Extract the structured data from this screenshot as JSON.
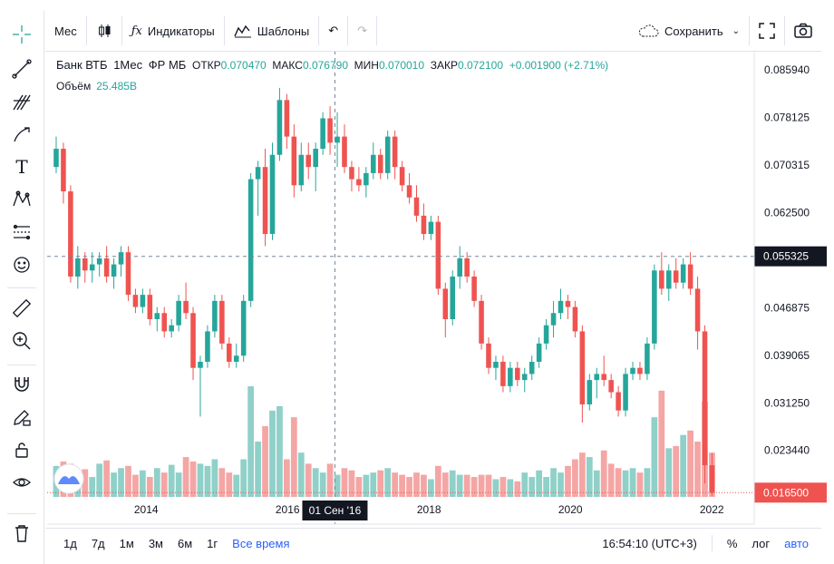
{
  "toolbar": {
    "interval": "Мес",
    "indicators": "Индикаторы",
    "templates": "Шаблоны",
    "save": "Сохранить"
  },
  "legend": {
    "symbol": "Банк ВТБ",
    "interval": "1Мес",
    "exchange": "ФР МБ",
    "open_label": "ОТКР",
    "open": "0.070470",
    "high_label": "МАКС",
    "high": "0.076790",
    "low_label": "МИН",
    "low": "0.070010",
    "close_label": "ЗАКР",
    "close": "0.072100",
    "change": "+0.001900 (+2.71%)",
    "volume_label": "Объём",
    "volume": "25.485B"
  },
  "bottom": {
    "ranges": [
      "1д",
      "7д",
      "1м",
      "3м",
      "6м",
      "1г",
      "Все время"
    ],
    "time": "16:54:10 (UTC+3)",
    "percent": "%",
    "log": "лог",
    "auto": "авто"
  },
  "colors": {
    "up": "#26a69a",
    "down": "#ef5350",
    "vol_up": "#8fd0c9",
    "vol_down": "#f4a6a4",
    "accent": "#2962ff"
  },
  "chart_data": {
    "type": "candlestick",
    "price_axis": [
      "0.085940",
      "0.078125",
      "0.070315",
      "0.062500",
      "0.046875",
      "0.039065",
      "0.031250",
      "0.023440"
    ],
    "price_range": [
      0.0158,
      0.0885
    ],
    "time_axis": [
      "2014",
      "2016",
      "2018",
      "2020",
      "2022"
    ],
    "time_range": [
      2012.6,
      2022.6
    ],
    "crosshair": {
      "time": "01 Сен '16",
      "t": 2016.67,
      "price": "0.055325",
      "p": 0.055325
    },
    "last_price": {
      "label": "0.016500",
      "value": 0.0165
    },
    "candles": [
      [
        0.07,
        0.075,
        0.069,
        0.073
      ],
      [
        0.073,
        0.074,
        0.064,
        0.066
      ],
      [
        0.066,
        0.067,
        0.051,
        0.052
      ],
      [
        0.052,
        0.057,
        0.05,
        0.055
      ],
      [
        0.055,
        0.056,
        0.051,
        0.053
      ],
      [
        0.053,
        0.056,
        0.051,
        0.054
      ],
      [
        0.054,
        0.056,
        0.052,
        0.055
      ],
      [
        0.055,
        0.057,
        0.051,
        0.052
      ],
      [
        0.052,
        0.055,
        0.05,
        0.054
      ],
      [
        0.054,
        0.057,
        0.052,
        0.056
      ],
      [
        0.056,
        0.057,
        0.048,
        0.049
      ],
      [
        0.049,
        0.05,
        0.046,
        0.047
      ],
      [
        0.047,
        0.05,
        0.046,
        0.049
      ],
      [
        0.049,
        0.05,
        0.044,
        0.045
      ],
      [
        0.045,
        0.047,
        0.043,
        0.046
      ],
      [
        0.046,
        0.047,
        0.042,
        0.043
      ],
      [
        0.043,
        0.045,
        0.042,
        0.044
      ],
      [
        0.044,
        0.049,
        0.043,
        0.048
      ],
      [
        0.048,
        0.051,
        0.045,
        0.046
      ],
      [
        0.046,
        0.047,
        0.035,
        0.037
      ],
      [
        0.037,
        0.039,
        0.029,
        0.038
      ],
      [
        0.038,
        0.044,
        0.037,
        0.043
      ],
      [
        0.043,
        0.049,
        0.042,
        0.048
      ],
      [
        0.048,
        0.049,
        0.04,
        0.041
      ],
      [
        0.041,
        0.042,
        0.037,
        0.038
      ],
      [
        0.038,
        0.041,
        0.037,
        0.039
      ],
      [
        0.039,
        0.049,
        0.038,
        0.048
      ],
      [
        0.048,
        0.069,
        0.047,
        0.068
      ],
      [
        0.068,
        0.071,
        0.062,
        0.07
      ],
      [
        0.07,
        0.073,
        0.057,
        0.059
      ],
      [
        0.059,
        0.074,
        0.058,
        0.072
      ],
      [
        0.072,
        0.083,
        0.071,
        0.081
      ],
      [
        0.081,
        0.082,
        0.073,
        0.075
      ],
      [
        0.075,
        0.077,
        0.065,
        0.067
      ],
      [
        0.067,
        0.074,
        0.066,
        0.072
      ],
      [
        0.072,
        0.074,
        0.068,
        0.07
      ],
      [
        0.07,
        0.074,
        0.066,
        0.073
      ],
      [
        0.073,
        0.079,
        0.072,
        0.078
      ],
      [
        0.078,
        0.08,
        0.072,
        0.074
      ],
      [
        0.074,
        0.079,
        0.07,
        0.075
      ],
      [
        0.075,
        0.077,
        0.069,
        0.07
      ],
      [
        0.07,
        0.071,
        0.066,
        0.068
      ],
      [
        0.068,
        0.07,
        0.066,
        0.067
      ],
      [
        0.067,
        0.07,
        0.065,
        0.069
      ],
      [
        0.069,
        0.074,
        0.068,
        0.072
      ],
      [
        0.072,
        0.073,
        0.068,
        0.069
      ],
      [
        0.069,
        0.076,
        0.068,
        0.075
      ],
      [
        0.075,
        0.076,
        0.068,
        0.07
      ],
      [
        0.07,
        0.071,
        0.066,
        0.067
      ],
      [
        0.067,
        0.069,
        0.064,
        0.065
      ],
      [
        0.065,
        0.067,
        0.061,
        0.062
      ],
      [
        0.062,
        0.064,
        0.058,
        0.059
      ],
      [
        0.059,
        0.062,
        0.058,
        0.061
      ],
      [
        0.061,
        0.062,
        0.049,
        0.05
      ],
      [
        0.05,
        0.051,
        0.042,
        0.045
      ],
      [
        0.045,
        0.053,
        0.044,
        0.052
      ],
      [
        0.052,
        0.057,
        0.05,
        0.055
      ],
      [
        0.055,
        0.056,
        0.051,
        0.052
      ],
      [
        0.052,
        0.053,
        0.047,
        0.048
      ],
      [
        0.048,
        0.049,
        0.04,
        0.041
      ],
      [
        0.041,
        0.042,
        0.036,
        0.037
      ],
      [
        0.037,
        0.039,
        0.035,
        0.038
      ],
      [
        0.038,
        0.039,
        0.033,
        0.034
      ],
      [
        0.034,
        0.038,
        0.033,
        0.037
      ],
      [
        0.037,
        0.038,
        0.034,
        0.035
      ],
      [
        0.035,
        0.037,
        0.033,
        0.036
      ],
      [
        0.036,
        0.039,
        0.035,
        0.038
      ],
      [
        0.038,
        0.042,
        0.037,
        0.041
      ],
      [
        0.041,
        0.045,
        0.04,
        0.044
      ],
      [
        0.044,
        0.048,
        0.042,
        0.046
      ],
      [
        0.046,
        0.05,
        0.045,
        0.048
      ],
      [
        0.048,
        0.049,
        0.045,
        0.047
      ],
      [
        0.047,
        0.048,
        0.042,
        0.043
      ],
      [
        0.043,
        0.044,
        0.028,
        0.031
      ],
      [
        0.031,
        0.036,
        0.03,
        0.035
      ],
      [
        0.035,
        0.037,
        0.032,
        0.036
      ],
      [
        0.036,
        0.039,
        0.034,
        0.035
      ],
      [
        0.035,
        0.036,
        0.032,
        0.033
      ],
      [
        0.033,
        0.034,
        0.029,
        0.03
      ],
      [
        0.03,
        0.037,
        0.029,
        0.036
      ],
      [
        0.036,
        0.038,
        0.035,
        0.037
      ],
      [
        0.037,
        0.038,
        0.035,
        0.036
      ],
      [
        0.036,
        0.042,
        0.035,
        0.041
      ],
      [
        0.041,
        0.054,
        0.04,
        0.053
      ],
      [
        0.053,
        0.056,
        0.049,
        0.05
      ],
      [
        0.05,
        0.054,
        0.048,
        0.053
      ],
      [
        0.053,
        0.055,
        0.05,
        0.051
      ],
      [
        0.051,
        0.055,
        0.05,
        0.054
      ],
      [
        0.054,
        0.056,
        0.049,
        0.05
      ],
      [
        0.05,
        0.052,
        0.04,
        0.043
      ],
      [
        0.043,
        0.044,
        0.018,
        0.021
      ],
      [
        0.021,
        0.023,
        0.016,
        0.0165
      ]
    ],
    "volume_levels": [
      0.28,
      0.32,
      0.3,
      0.22,
      0.25,
      0.18,
      0.3,
      0.33,
      0.22,
      0.26,
      0.28,
      0.2,
      0.24,
      0.18,
      0.26,
      0.22,
      0.29,
      0.22,
      0.36,
      0.32,
      0.3,
      0.28,
      0.34,
      0.26,
      0.22,
      0.2,
      0.34,
      1.0,
      0.5,
      0.64,
      0.78,
      0.82,
      0.34,
      0.72,
      0.4,
      0.3,
      0.26,
      0.22,
      0.3,
      0.2,
      0.26,
      0.24,
      0.18,
      0.2,
      0.22,
      0.24,
      0.26,
      0.22,
      0.2,
      0.18,
      0.22,
      0.2,
      0.16,
      0.28,
      0.22,
      0.24,
      0.2,
      0.2,
      0.18,
      0.2,
      0.2,
      0.16,
      0.18,
      0.16,
      0.14,
      0.22,
      0.18,
      0.24,
      0.18,
      0.26,
      0.22,
      0.28,
      0.34,
      0.4,
      0.36,
      0.24,
      0.42,
      0.3,
      0.26,
      0.24,
      0.26,
      0.22,
      0.26,
      0.72,
      0.96,
      0.44,
      0.46,
      0.56,
      0.6,
      0.5,
      0.86,
      0.4
    ]
  }
}
